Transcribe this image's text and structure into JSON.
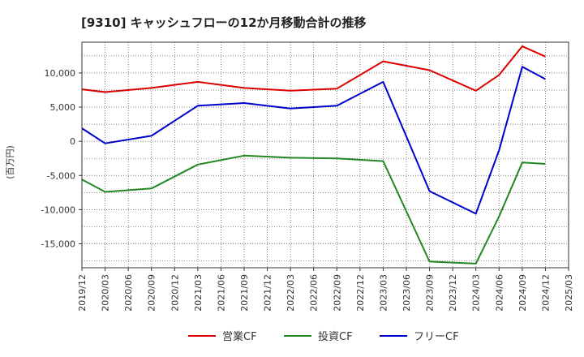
{
  "chart_data": {
    "type": "line",
    "title": "[9310]  キャッシュフローの12か月移動合計の推移",
    "ylabel": "(百万円)",
    "xlabel": "",
    "categories": [
      "2019/12",
      "2020/03",
      "2020/06",
      "2020/09",
      "2020/12",
      "2021/03",
      "2021/06",
      "2021/09",
      "2021/12",
      "2022/03",
      "2022/06",
      "2022/09",
      "2022/12",
      "2023/03",
      "2023/06",
      "2023/09",
      "2023/12",
      "2024/03",
      "2024/06",
      "2024/09",
      "2024/12",
      "2025/03"
    ],
    "ylim": [
      -18500,
      14500
    ],
    "yticks": [
      10000,
      5000,
      0,
      -5000,
      -10000,
      -15000
    ],
    "ytick_labels": [
      "10,000",
      "5,000",
      "0",
      "-5,000",
      "-10,000",
      "-15,000"
    ],
    "series": [
      {
        "name": "営業CF",
        "color": "#dd0000",
        "values": [
          7600,
          7200,
          null,
          7800,
          null,
          8700,
          null,
          7800,
          null,
          7400,
          null,
          7700,
          null,
          11700,
          null,
          10400,
          null,
          7400,
          9700,
          13900,
          12400,
          null
        ]
      },
      {
        "name": "投資CF",
        "color": "#228822",
        "values": [
          -5600,
          -7400,
          null,
          -6900,
          null,
          -3400,
          null,
          -2100,
          null,
          -2400,
          null,
          -2500,
          null,
          -2900,
          null,
          -17600,
          null,
          -17900,
          -11000,
          -3100,
          -3300,
          null
        ]
      },
      {
        "name": "フリーCF",
        "color": "#0000cc",
        "values": [
          1900,
          -300,
          null,
          800,
          null,
          5200,
          null,
          5600,
          null,
          4800,
          null,
          5200,
          null,
          8700,
          null,
          -7300,
          null,
          -10600,
          -1300,
          10900,
          9100,
          null
        ]
      }
    ],
    "grid": true,
    "legend": "bottom-center"
  }
}
